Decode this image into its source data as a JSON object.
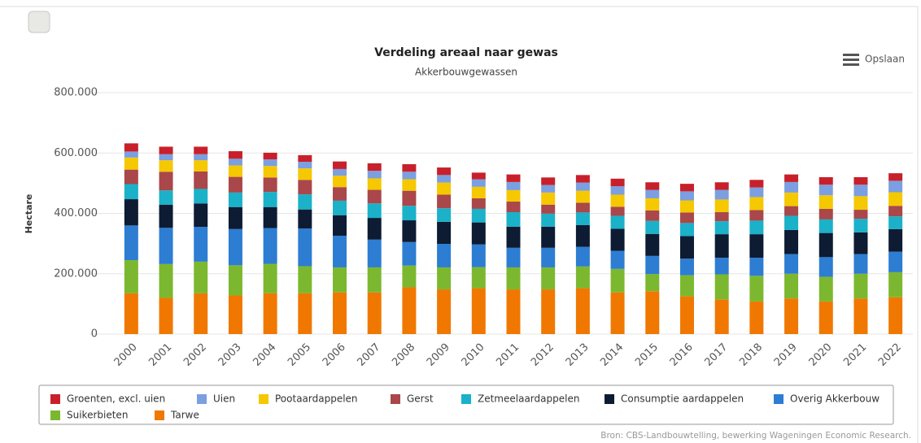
{
  "chart_data": {
    "type": "stacked_bar",
    "title": "Verdeling areaal naar gewas",
    "subtitle": "Akkerbouwgewassen",
    "y_label": "Hectare",
    "menu_label": "Opslaan",
    "source": "Bron: CBS-Landbouwtelling, bewerking Wageningen Economic Research.",
    "categories": [
      "2000",
      "2001",
      "2002",
      "2003",
      "2004",
      "2005",
      "2006",
      "2007",
      "2008",
      "2009",
      "2010",
      "2011",
      "2012",
      "2013",
      "2014",
      "2015",
      "2016",
      "2017",
      "2018",
      "2019",
      "2020",
      "2021",
      "2022"
    ],
    "ylim": [
      0,
      800000
    ],
    "yticks": [
      0,
      {
        "value": 200000,
        "label": "200.000"
      },
      {
        "value": 400000,
        "label": "400.000"
      },
      {
        "value": 600000,
        "label": "600.000"
      },
      {
        "value": 800000,
        "label": "800.000"
      }
    ],
    "grid": true,
    "series": [
      {
        "name": "Groenten, excl. uien",
        "color": "#c8202a",
        "values": [
          27000,
          25000,
          25000,
          25000,
          22000,
          22000,
          25000,
          25000,
          25000,
          25000,
          22000,
          25000,
          25000,
          25000,
          25000,
          25000,
          25000,
          25000,
          25000,
          25000,
          25000,
          25000,
          25000
        ]
      },
      {
        "name": "Uien",
        "color": "#7b9fe0",
        "values": [
          20000,
          20000,
          20000,
          22000,
          22000,
          22000,
          22000,
          25000,
          25000,
          25000,
          25000,
          27000,
          25000,
          27000,
          28000,
          28000,
          30000,
          32000,
          32000,
          35000,
          35000,
          38000,
          38000
        ]
      },
      {
        "name": "Pootaardappelen",
        "color": "#f5c800",
        "values": [
          40000,
          38000,
          37000,
          38000,
          38000,
          38000,
          38000,
          38000,
          38000,
          40000,
          38000,
          38000,
          40000,
          40000,
          40000,
          40000,
          40000,
          42000,
          43000,
          45000,
          45000,
          45000,
          45000
        ]
      },
      {
        "name": "Gerst",
        "color": "#a9474a",
        "values": [
          48000,
          62000,
          58000,
          52000,
          48000,
          48000,
          45000,
          45000,
          50000,
          45000,
          35000,
          35000,
          30000,
          32000,
          30000,
          35000,
          35000,
          30000,
          35000,
          32000,
          35000,
          30000,
          35000
        ]
      },
      {
        "name": "Zetmeelaardappelen",
        "color": "#1ab1c9",
        "values": [
          50000,
          47000,
          48000,
          48000,
          50000,
          50000,
          48000,
          48000,
          48000,
          45000,
          45000,
          48000,
          43000,
          42000,
          43000,
          43000,
          43000,
          43000,
          45000,
          47000,
          45000,
          45000,
          42000
        ]
      },
      {
        "name": "Consumptie aardappelen",
        "color": "#0d1b33",
        "values": [
          87000,
          77000,
          78000,
          73000,
          70000,
          63000,
          68000,
          72000,
          72000,
          73000,
          73000,
          70000,
          70000,
          72000,
          73000,
          73000,
          75000,
          78000,
          78000,
          80000,
          80000,
          72000,
          75000
        ]
      },
      {
        "name": "Overig Akkerbouw",
        "color": "#2d7dd2",
        "values": [
          115000,
          120000,
          115000,
          120000,
          118000,
          125000,
          105000,
          92000,
          78000,
          78000,
          75000,
          65000,
          65000,
          65000,
          60000,
          60000,
          55000,
          55000,
          60000,
          65000,
          65000,
          65000,
          68000
        ]
      },
      {
        "name": "Suikerbieten",
        "color": "#7cb82f",
        "values": [
          110000,
          112000,
          105000,
          100000,
          98000,
          90000,
          83000,
          83000,
          72000,
          73000,
          70000,
          73000,
          73000,
          72000,
          78000,
          57000,
          70000,
          83000,
          85000,
          82000,
          82000,
          82000,
          83000
        ]
      },
      {
        "name": "Tarwe",
        "color": "#f07800",
        "values": [
          135000,
          120000,
          135000,
          128000,
          135000,
          135000,
          138000,
          138000,
          155000,
          148000,
          152000,
          148000,
          148000,
          152000,
          138000,
          142000,
          125000,
          115000,
          108000,
          118000,
          108000,
          118000,
          122000
        ]
      }
    ]
  }
}
